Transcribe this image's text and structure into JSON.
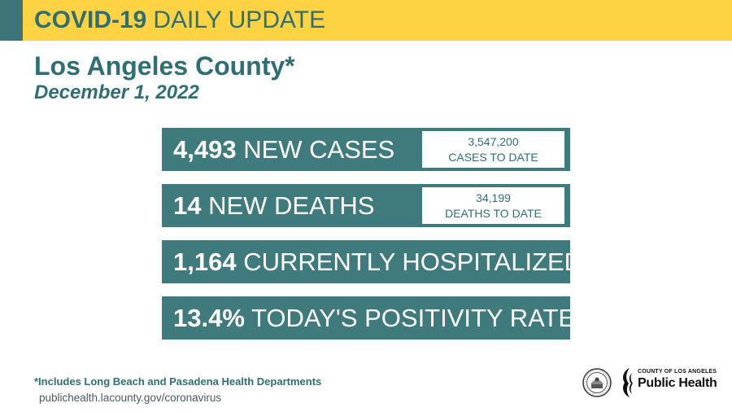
{
  "banner": {
    "bold": "COVID-19",
    "rest": "DAILY UPDATE"
  },
  "county": "Los Angeles County*",
  "date": "December 1, 2022",
  "stats": [
    {
      "value": "4,493",
      "label": "NEW CASES",
      "todate_value": "3,547,200",
      "todate_label": "CASES TO DATE"
    },
    {
      "value": "14",
      "label": "NEW DEATHS",
      "todate_value": "34,199",
      "todate_label": "DEATHS TO DATE"
    },
    {
      "value": "1,164",
      "label": "CURRENTLY HOSPITALIZED"
    },
    {
      "value": "13.4%",
      "label": "TODAY'S POSITIVITY RATE"
    }
  ],
  "footnote": "*Includes Long Beach and Pasadena Health Departments",
  "url": "publichealth.lacounty.gov/coronavirus",
  "logo": {
    "small": "COUNTY OF LOS ANGELES",
    "big": "Public Health"
  },
  "colors": {
    "banner": "#fdd343",
    "teal": "#3f7a7c",
    "text_teal": "#2f6f73"
  },
  "icons": {
    "seal": "county-seal-icon",
    "logo": "public-health-logo-icon"
  }
}
